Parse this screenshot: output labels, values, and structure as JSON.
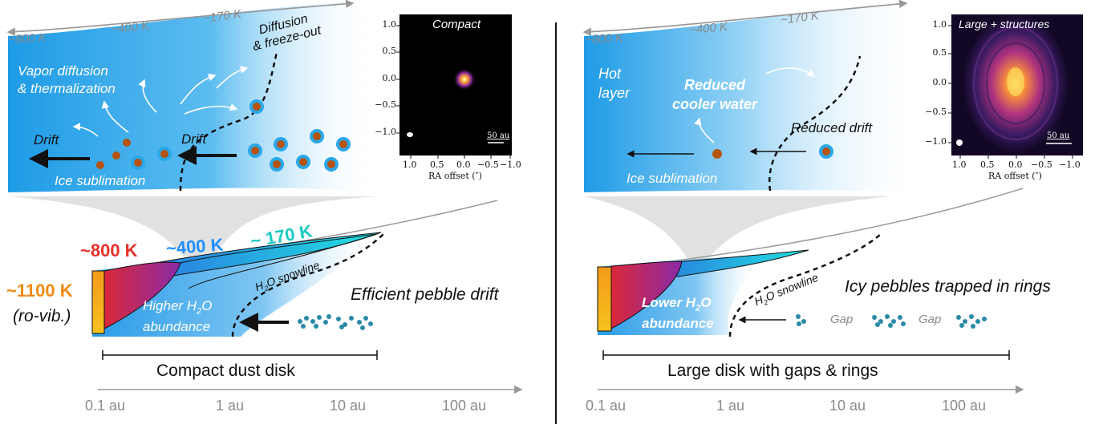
{
  "left": {
    "temps_top": [
      "~800 K",
      "~400 K",
      "~170 K"
    ],
    "diffusion_label": "Diffusion\n& freeze-out",
    "vapor_label": "Vapor diffusion\n& thermalization",
    "drift_left": "Drift",
    "drift_right": "Drift",
    "ice_sublimation": "Ice sublimation",
    "inset": {
      "title": "Compact",
      "yticks": [
        "1.0",
        "0.5",
        "0.0",
        "−0.5",
        "−1.0"
      ],
      "xticks": [
        "1.0",
        "0.5",
        "0.0",
        "−0.5",
        "−1.0"
      ],
      "xlabel": "RA offset  (″)",
      "scalebar": "50 au"
    },
    "t800": "~800 K",
    "t400": "~400 K",
    "t170": "~ 170 K",
    "t1100": "~1100 K",
    "rovib": "(ro-vib.)",
    "higher_line1": "Higher H",
    "higher_sub": "2",
    "higher_line1b": "O",
    "higher_line2": "abundance",
    "snowline_a": "H",
    "snowline_sub": "2",
    "snowline_b": "O snowline",
    "efficient": "Efficient pebble drift",
    "disk_label": "Compact dust disk",
    "axis": [
      "0.1 au",
      "1 au",
      "10 au",
      "100 au"
    ]
  },
  "right": {
    "temps_top": [
      "~800 K",
      "~400 K",
      "~170 K"
    ],
    "hot_layer": "Hot\nlayer",
    "reduced_cooler": "Reduced\ncooler water",
    "reduced_drift": "Reduced drift",
    "ice_sublimation": "Ice sublimation",
    "inset": {
      "title": "Large + structures",
      "yticks": [
        "1.0",
        "0.5",
        "0.0",
        "−0.5",
        "−1.0"
      ],
      "xticks": [
        "1.0",
        "0.5",
        "0.0",
        "−0.5",
        "−1.0"
      ],
      "xlabel": "RA offset  (″)",
      "scalebar": "50 au"
    },
    "lower_line1": "Lower H",
    "lower_sub": "2",
    "lower_line1b": "O",
    "lower_line2": "abundance",
    "snowline_a": "H",
    "snowline_sub": "2",
    "snowline_b": "O snowline",
    "icy_trapped": "Icy pebbles trapped in rings",
    "gap1": "Gap",
    "gap2": "Gap",
    "disk_label": "Large disk with gaps & rings",
    "axis": [
      "0.1 au",
      "1 au",
      "10 au",
      "100 au"
    ]
  },
  "colors": {
    "ice_blue": "#2aa7e8",
    "pebble_brown": "#b5530f",
    "temp_800": "#e8302a",
    "temp_400": "#1e90ff",
    "temp_170": "#19c9c2",
    "temp_1100": "#f08a12",
    "axis_gray": "#999999"
  }
}
